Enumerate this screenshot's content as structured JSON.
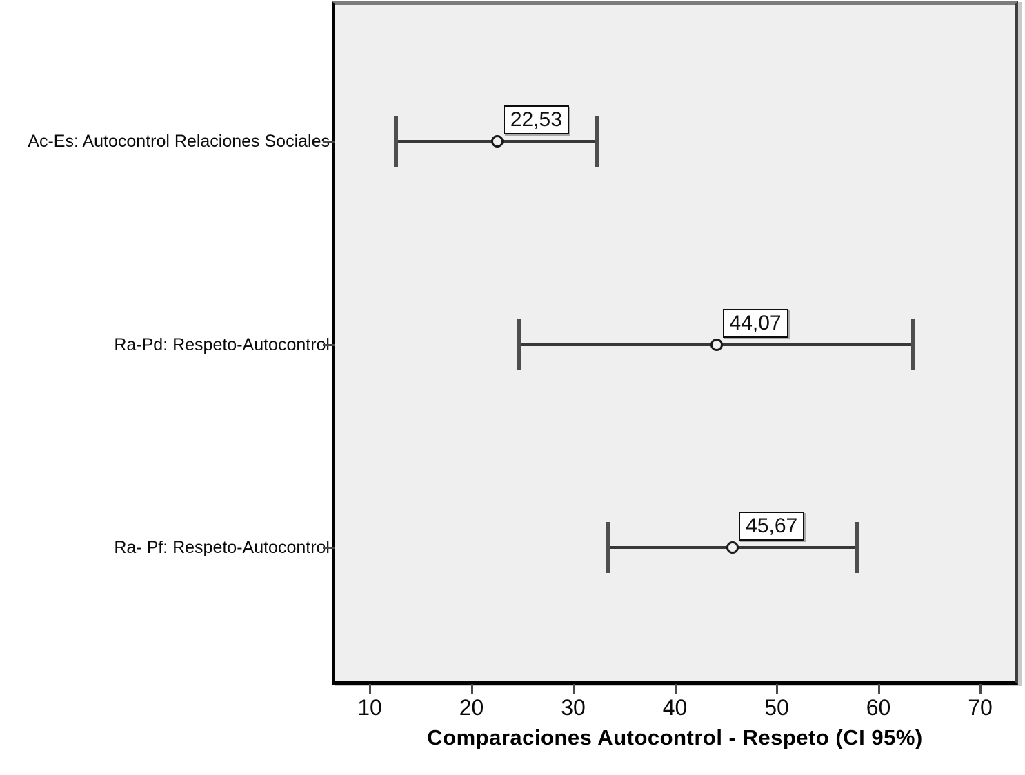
{
  "chart_data": {
    "type": "errorbar",
    "orientation": "horizontal",
    "title": "Comparaciones Autocontrol - Respeto (CI 95%)",
    "xlabel": "Comparaciones Autocontrol - Respeto (CI 95%)",
    "x_ticks": [
      10,
      20,
      30,
      40,
      50,
      60,
      70
    ],
    "xlim": [
      6.6,
      73.4
    ],
    "grid": false,
    "legend": "none",
    "marker": "open-circle",
    "panel_background": "#efefef",
    "line_color": "#383838",
    "categories": [
      "Ac-Es: Autocontrol Relaciones Sociales",
      "Ra-Pd: Respeto-Autocontrol",
      "Ra- Pf: Respeto-Autocontrol"
    ],
    "points": [
      {
        "category": "Ac-Es: Autocontrol Relaciones Sociales",
        "mean": 22.53,
        "label": "22,53",
        "ci_low": 12.6,
        "ci_high": 32.3
      },
      {
        "category": "Ra-Pd: Respeto-Autocontrol",
        "mean": 44.07,
        "label": "44,07",
        "ci_low": 24.7,
        "ci_high": 63.4
      },
      {
        "category": "Ra- Pf: Respeto-Autocontrol",
        "mean": 45.67,
        "label": "45,67",
        "ci_low": 33.4,
        "ci_high": 57.9
      }
    ]
  }
}
